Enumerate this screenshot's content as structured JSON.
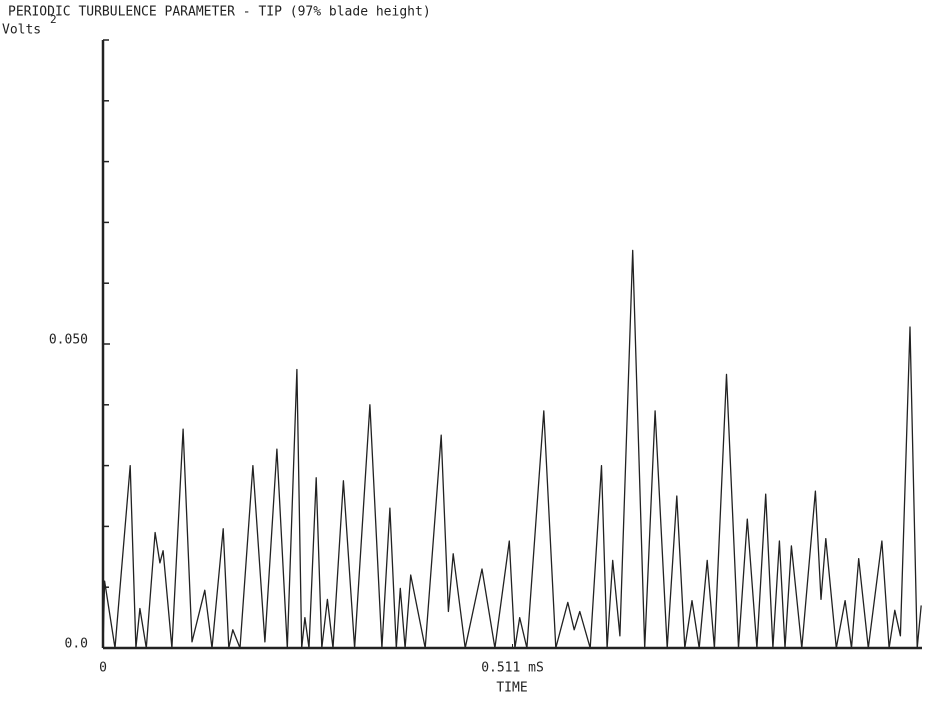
{
  "chart_data": {
    "type": "line",
    "title": "PERIODIC TURBULENCE PARAMETER - TIP (97% blade height)",
    "y_label": "Volts",
    "y_label_superscript": "2",
    "x_label": "TIME",
    "xlim": [
      0,
      1.022
    ],
    "ylim": [
      0,
      0.1
    ],
    "xticks": [
      0,
      {
        "value": 0.511,
        "label": "0.511 mS"
      }
    ],
    "yticks": [
      {
        "value": 0,
        "label": "0.0"
      },
      {
        "value": 0.05,
        "label": "0.050"
      }
    ],
    "yminor_ticks": [
      0.01,
      0.02,
      0.03,
      0.04,
      0.06,
      0.07,
      0.08,
      0.09,
      0.1
    ],
    "grid": false,
    "series": [
      {
        "color": "#222222",
        "x": [
          0,
          0.002,
          0.015,
          0.034,
          0.041,
          0.046,
          0.054,
          0.065,
          0.071,
          0.075,
          0.086,
          0.1,
          0.111,
          0.127,
          0.136,
          0.15,
          0.157,
          0.162,
          0.171,
          0.187,
          0.202,
          0.217,
          0.23,
          0.242,
          0.248,
          0.252,
          0.257,
          0.266,
          0.273,
          0.28,
          0.287,
          0.3,
          0.314,
          0.333,
          0.348,
          0.358,
          0.366,
          0.371,
          0.377,
          0.384,
          0.402,
          0.422,
          0.431,
          0.437,
          0.452,
          0.473,
          0.489,
          0.507,
          0.514,
          0.52,
          0.529,
          0.55,
          0.565,
          0.58,
          0.588,
          0.595,
          0.608,
          0.622,
          0.629,
          0.636,
          0.645,
          0.661,
          0.676,
          0.689,
          0.704,
          0.716,
          0.726,
          0.735,
          0.744,
          0.754,
          0.763,
          0.778,
          0.793,
          0.804,
          0.816,
          0.827,
          0.836,
          0.844,
          0.851,
          0.859,
          0.872,
          0.889,
          0.896,
          0.902,
          0.915,
          0.926,
          0.934,
          0.943,
          0.955,
          0.972,
          0.981,
          0.988,
          0.995,
          1.007,
          1.016,
          1.021
        ],
        "values": [
          0,
          0.011,
          0,
          0.03,
          0,
          0.0065,
          0,
          0.019,
          0.014,
          0.016,
          0,
          0.036,
          0.001,
          0.0095,
          0,
          0.0196,
          0,
          0.003,
          0,
          0.03,
          0.001,
          0.0327,
          0,
          0.0458,
          0,
          0.005,
          0,
          0.028,
          0,
          0.008,
          0,
          0.0275,
          0,
          0.04,
          0,
          0.023,
          0,
          0.0098,
          0,
          0.012,
          0,
          0.035,
          0.006,
          0.0155,
          0,
          0.013,
          0,
          0.0176,
          0,
          0.005,
          0,
          0.039,
          0,
          0.0075,
          0.003,
          0.006,
          0,
          0.03,
          0,
          0.0144,
          0.002,
          0.0654,
          0,
          0.039,
          0,
          0.025,
          0,
          0.0078,
          0,
          0.0144,
          0,
          0.045,
          0,
          0.0212,
          0,
          0.0253,
          0,
          0.0176,
          0,
          0.0168,
          0,
          0.0258,
          0.008,
          0.018,
          0,
          0.0078,
          0,
          0.0147,
          0,
          0.0176,
          0,
          0.0062,
          0.002,
          0.0528,
          0,
          0.007
        ]
      }
    ]
  }
}
